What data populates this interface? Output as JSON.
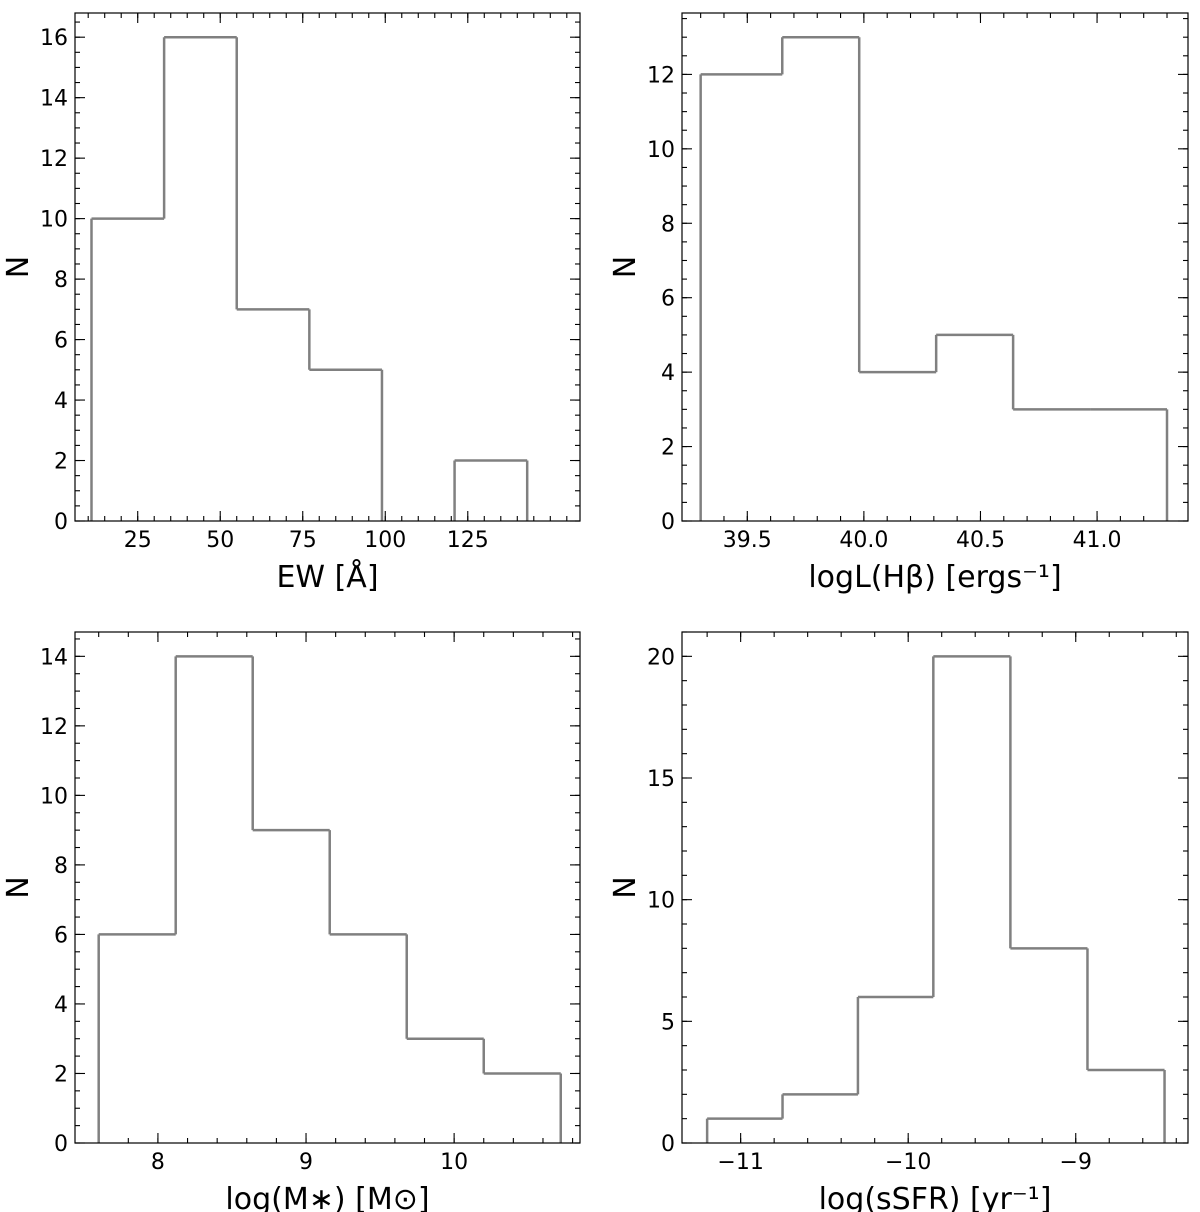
{
  "chart_data": [
    {
      "type": "histogram",
      "xlabel": "EW [Å]",
      "ylabel": "N",
      "bin_edges": [
        11,
        33,
        55,
        77,
        99,
        121,
        143
      ],
      "counts": [
        10,
        16,
        7,
        5,
        0,
        2
      ],
      "xlim": [
        6,
        159
      ],
      "ylim": [
        0,
        16.8
      ],
      "xticks": [
        25,
        50,
        75,
        100,
        125
      ],
      "xtick_labels": [
        "25",
        "50",
        "75",
        "100",
        "125"
      ],
      "yticks": [
        0,
        2,
        4,
        6,
        8,
        10,
        12,
        14,
        16
      ],
      "ytick_labels": [
        "0",
        "2",
        "4",
        "6",
        "8",
        "10",
        "12",
        "14",
        "16"
      ],
      "xminor": 5,
      "yminor": 0.5,
      "color": "#808080"
    },
    {
      "type": "histogram",
      "xlabel": "logL(Hβ) [ergs⁻¹]",
      "ylabel": "N",
      "bin_edges": [
        39.3,
        39.65,
        39.98,
        40.31,
        40.64,
        40.97,
        41.3
      ],
      "counts": [
        12,
        13,
        4,
        5,
        3,
        3
      ],
      "xlim": [
        39.22,
        41.39
      ],
      "ylim": [
        0,
        13.65
      ],
      "xticks": [
        39.5,
        40.0,
        40.5,
        41.0
      ],
      "xtick_labels": [
        "39.5",
        "40.0",
        "40.5",
        "41.0"
      ],
      "yticks": [
        0,
        2,
        4,
        6,
        8,
        10,
        12
      ],
      "ytick_labels": [
        "0",
        "2",
        "4",
        "6",
        "8",
        "10",
        "12"
      ],
      "xminor": 0.1,
      "yminor": 0.5,
      "color": "#808080"
    },
    {
      "type": "histogram",
      "xlabel": "log(M∗) [M⊙]",
      "ylabel": "N",
      "bin_edges": [
        7.6,
        8.12,
        8.64,
        9.16,
        9.68,
        10.2,
        10.72
      ],
      "counts": [
        6,
        14,
        9,
        6,
        3,
        2
      ],
      "xlim": [
        7.44,
        10.85
      ],
      "ylim": [
        0,
        14.7
      ],
      "xticks": [
        8,
        9,
        10
      ],
      "xtick_labels": [
        "8",
        "9",
        "10"
      ],
      "yticks": [
        0,
        2,
        4,
        6,
        8,
        10,
        12,
        14
      ],
      "ytick_labels": [
        "0",
        "2",
        "4",
        "6",
        "8",
        "10",
        "12",
        "14"
      ],
      "xminor": 0.2,
      "yminor": 0.5,
      "color": "#808080"
    },
    {
      "type": "histogram",
      "xlabel": "log(sSFR) [yr⁻¹]",
      "ylabel": "N",
      "bin_edges": [
        -11.2,
        -10.75,
        -10.3,
        -9.85,
        -9.39,
        -8.93,
        -8.47
      ],
      "counts": [
        1,
        2,
        6,
        20,
        8,
        3
      ],
      "xlim": [
        -11.35,
        -8.33
      ],
      "ylim": [
        0,
        21
      ],
      "xticks": [
        -11,
        -10,
        -9
      ],
      "xtick_labels": [
        "−11",
        "−10",
        "−9"
      ],
      "yticks": [
        0,
        5,
        10,
        15,
        20
      ],
      "ytick_labels": [
        "0",
        "5",
        "10",
        "15",
        "20"
      ],
      "xminor": 0.2,
      "yminor": 1,
      "color": "#808080"
    }
  ]
}
